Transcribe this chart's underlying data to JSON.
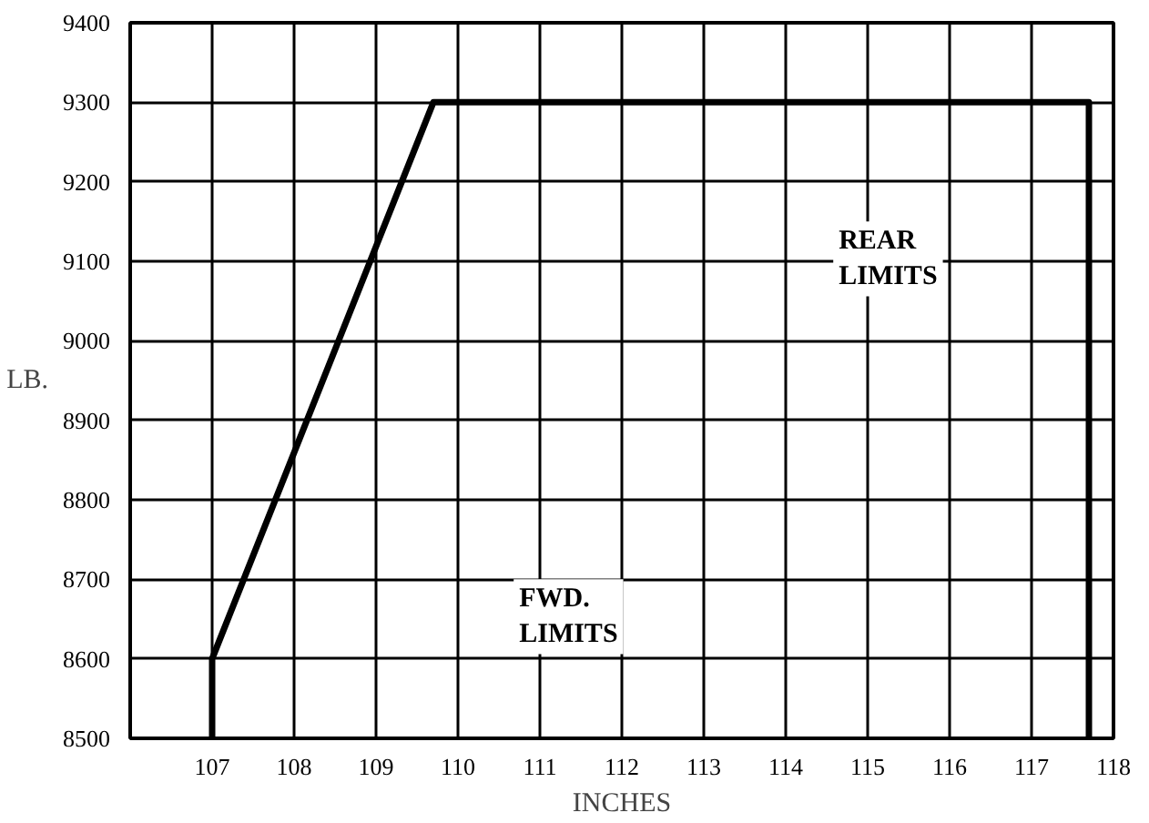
{
  "chart_data": {
    "type": "line",
    "xlabel": "INCHES",
    "ylabel": "LB.",
    "x": [
      107,
      107,
      109.7,
      117.7,
      117.7
    ],
    "series": [
      {
        "color": "#000000",
        "values": [
          8500,
          8600,
          9300,
          9300,
          8500
        ]
      }
    ],
    "xlim": [
      106,
      118
    ],
    "xticks": [
      107,
      108,
      109,
      110,
      111,
      112,
      113,
      114,
      115,
      116,
      117,
      118
    ],
    "ylim": [
      8500,
      9400
    ],
    "yticks": [
      8500,
      8600,
      8700,
      8800,
      8900,
      9000,
      9100,
      9200,
      9300,
      9400
    ],
    "grid": true,
    "marker": "none",
    "line_style": "solid",
    "annotations": [
      "FWD.\nLIMITS",
      "REAR\nLIMITS"
    ]
  }
}
